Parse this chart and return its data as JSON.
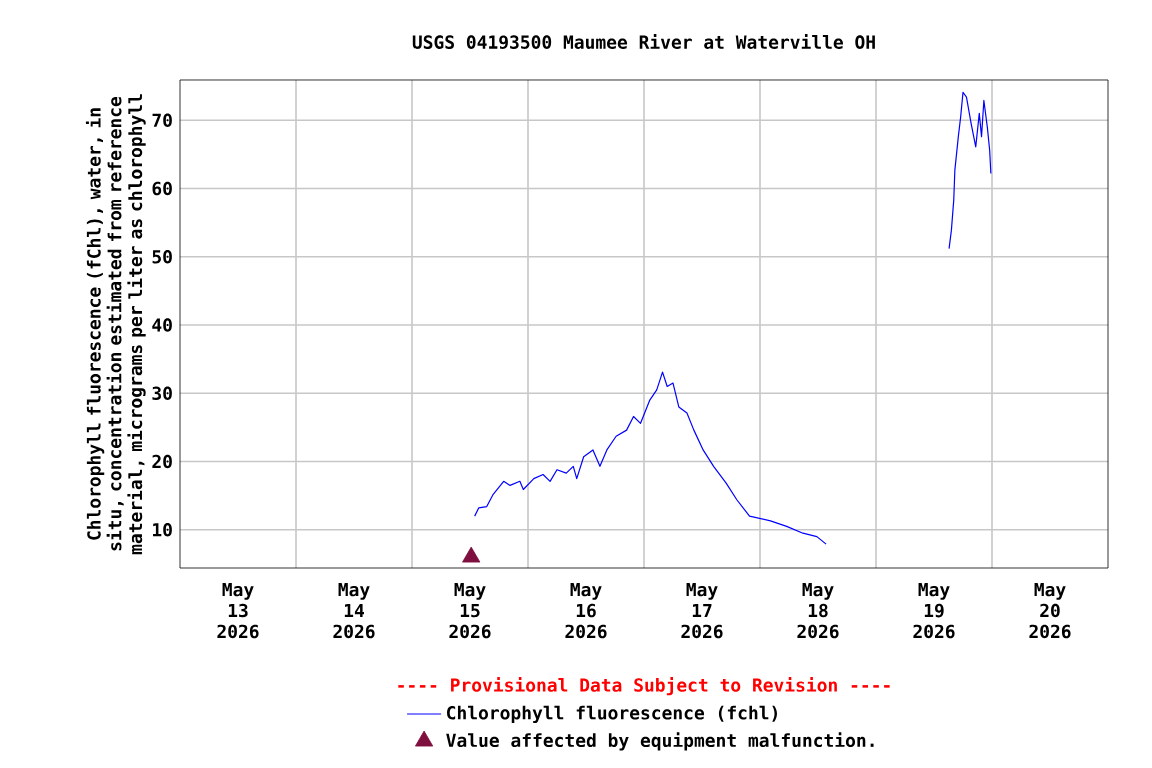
{
  "chart_data": {
    "type": "line",
    "title": "USGS 04193500 Maumee River at Waterville OH",
    "ylabel": "Chlorophyll fluorescence (fChl), water, in situ, concentration estimated from reference material, micrograms per liter as chlorophyll",
    "annotations": [
      "---- Provisional Data Subject to Revision ----"
    ],
    "xlim": [
      "2026-05-13T00:00",
      "2026-05-21T00:00"
    ],
    "xticks": [
      {
        "value": "2026-05-13T12:00",
        "label": "May 13 2026"
      },
      {
        "value": "2026-05-14T00:00",
        "label": null
      },
      {
        "value": "2026-05-14T12:00",
        "label": "May 14 2026"
      },
      {
        "value": "2026-05-15T00:00",
        "label": null
      },
      {
        "value": "2026-05-15T12:00",
        "label": "May 15 2026"
      },
      {
        "value": "2026-05-16T00:00",
        "label": null
      },
      {
        "value": "2026-05-16T12:00",
        "label": "May 16 2026"
      },
      {
        "value": "2026-05-17T00:00",
        "label": null
      },
      {
        "value": "2026-05-17T12:00",
        "label": "May 17 2026"
      },
      {
        "value": "2026-05-18T00:00",
        "label": null
      },
      {
        "value": "2026-05-18T12:00",
        "label": "May 18 2026"
      },
      {
        "value": "2026-05-19T00:00",
        "label": null
      },
      {
        "value": "2026-05-19T12:00",
        "label": "May 19 2026"
      },
      {
        "value": "2026-05-20T00:00",
        "label": null
      },
      {
        "value": "2026-05-20T12:00",
        "label": "May 20 2026"
      }
    ],
    "ylim": [
      4.4,
      75.9
    ],
    "yticks": [
      10,
      20,
      30,
      40,
      50,
      60,
      70
    ],
    "grid": true,
    "legend": "bottom",
    "series": [
      {
        "name": "Chlorophyll fluorescence (fchl)",
        "color": "#0000ff",
        "marker": "none",
        "x": [
          "2026-05-15T12:58",
          "2026-05-15T13:48",
          "2026-05-15T15:28",
          "2026-05-15T16:48",
          "2026-05-15T18:58",
          "2026-05-15T20:17",
          "2026-05-15T22:19",
          "2026-05-15T23:02",
          "2026-05-16T01:12",
          "2026-05-16T03:07",
          "2026-05-16T04:34",
          "2026-05-16T06:00",
          "2026-05-16T07:55",
          "2026-05-16T09:22",
          "2026-05-16T10:05",
          "2026-05-16T11:31",
          "2026-05-16T13:26",
          "2026-05-16T14:53",
          "2026-05-16T16:19",
          "2026-05-16T18:14",
          "2026-05-16T20:24",
          "2026-05-16T21:50",
          "2026-05-16T23:17",
          "2026-05-17T01:12",
          "2026-05-17T02:38",
          "2026-05-17T03:50",
          "2026-05-17T04:48",
          "2026-05-17T06:00",
          "2026-05-17T07:12",
          "2026-05-17T08:53",
          "2026-05-17T10:19",
          "2026-05-17T12:14",
          "2026-05-17T14:24",
          "2026-05-17T17:02",
          "2026-05-17T19:12",
          "2026-05-17T21:50",
          "2026-05-18T02:10",
          "2026-05-18T05:31",
          "2026-05-18T08:53",
          "2026-05-18T11:46",
          "2026-05-18T13:41",
          "2026-05-19T00:00",
          "2026-05-19T15:07",
          "2026-05-19T15:36",
          "2026-05-19T16:05",
          "2026-05-19T16:19",
          "2026-05-19T17:02",
          "2026-05-19T17:31",
          "2026-05-19T18:00",
          "2026-05-19T18:43",
          "2026-05-19T19:41",
          "2026-05-19T20:38",
          "2026-05-19T21:22",
          "2026-05-19T21:50",
          "2026-05-19T22:19",
          "2026-05-19T23:02",
          "2026-05-19T23:31",
          "2026-05-19T23:46"
        ],
        "values": [
          12.0,
          13.2,
          13.4,
          15.2,
          17.1,
          16.5,
          17.1,
          15.9,
          17.5,
          18.1,
          17.1,
          18.8,
          18.3,
          19.3,
          17.5,
          20.7,
          21.7,
          19.3,
          21.7,
          23.7,
          24.6,
          26.6,
          25.6,
          29.0,
          30.5,
          33.1,
          31.0,
          31.5,
          28.0,
          27.1,
          24.6,
          21.7,
          19.3,
          16.8,
          14.4,
          12.0,
          11.3,
          10.5,
          9.5,
          9.0,
          7.9,
          null,
          51.2,
          53.9,
          58.3,
          62.7,
          67.6,
          70.5,
          74.1,
          73.4,
          69.5,
          66.1,
          71.0,
          67.6,
          72.9,
          69.0,
          65.6,
          62.2
        ]
      },
      {
        "name": "Value affected by equipment malfunction.",
        "type": "scatter",
        "color": "#7f0f3f",
        "marker": "triangle",
        "x": [
          "2026-05-15T12:15"
        ],
        "values": [
          6
        ]
      }
    ]
  }
}
